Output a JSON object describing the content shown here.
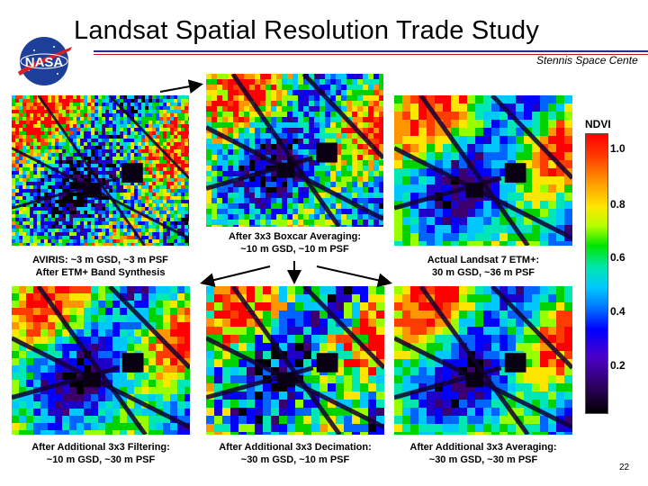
{
  "header": {
    "title": "Landsat Spatial Resolution Trade Study",
    "subtitle": "Stennis Space Cente",
    "logo_text": "NASA"
  },
  "panels": {
    "top_left": "AVIRIS: ~3 m GSD, ~3 m PSF\nAfter ETM+ Band Synthesis",
    "top_center": "After 3x3 Boxcar Averaging:\n~10 m GSD, ~10 m PSF",
    "top_right": "Actual Landsat 7 ETM+:\n30 m GSD, ~36 m PSF",
    "bottom_left": "After Additional 3x3 Filtering:\n~10 m GSD, ~30 m PSF",
    "bottom_center": "After Additional 3x3 Decimation:\n~30 m GSD, ~10 m PSF",
    "bottom_right": "After Additional 3x3 Averaging:\n~30 m GSD, ~30 m PSF"
  },
  "colorbar": {
    "label": "NDVI",
    "ticks": [
      "1.0",
      "0.8",
      "0.6",
      "0.4",
      "0.2"
    ]
  },
  "footer": {
    "page_number": "22"
  },
  "colors": {
    "rule_blue": "#1b2f8c",
    "rule_red": "#c4161c"
  }
}
